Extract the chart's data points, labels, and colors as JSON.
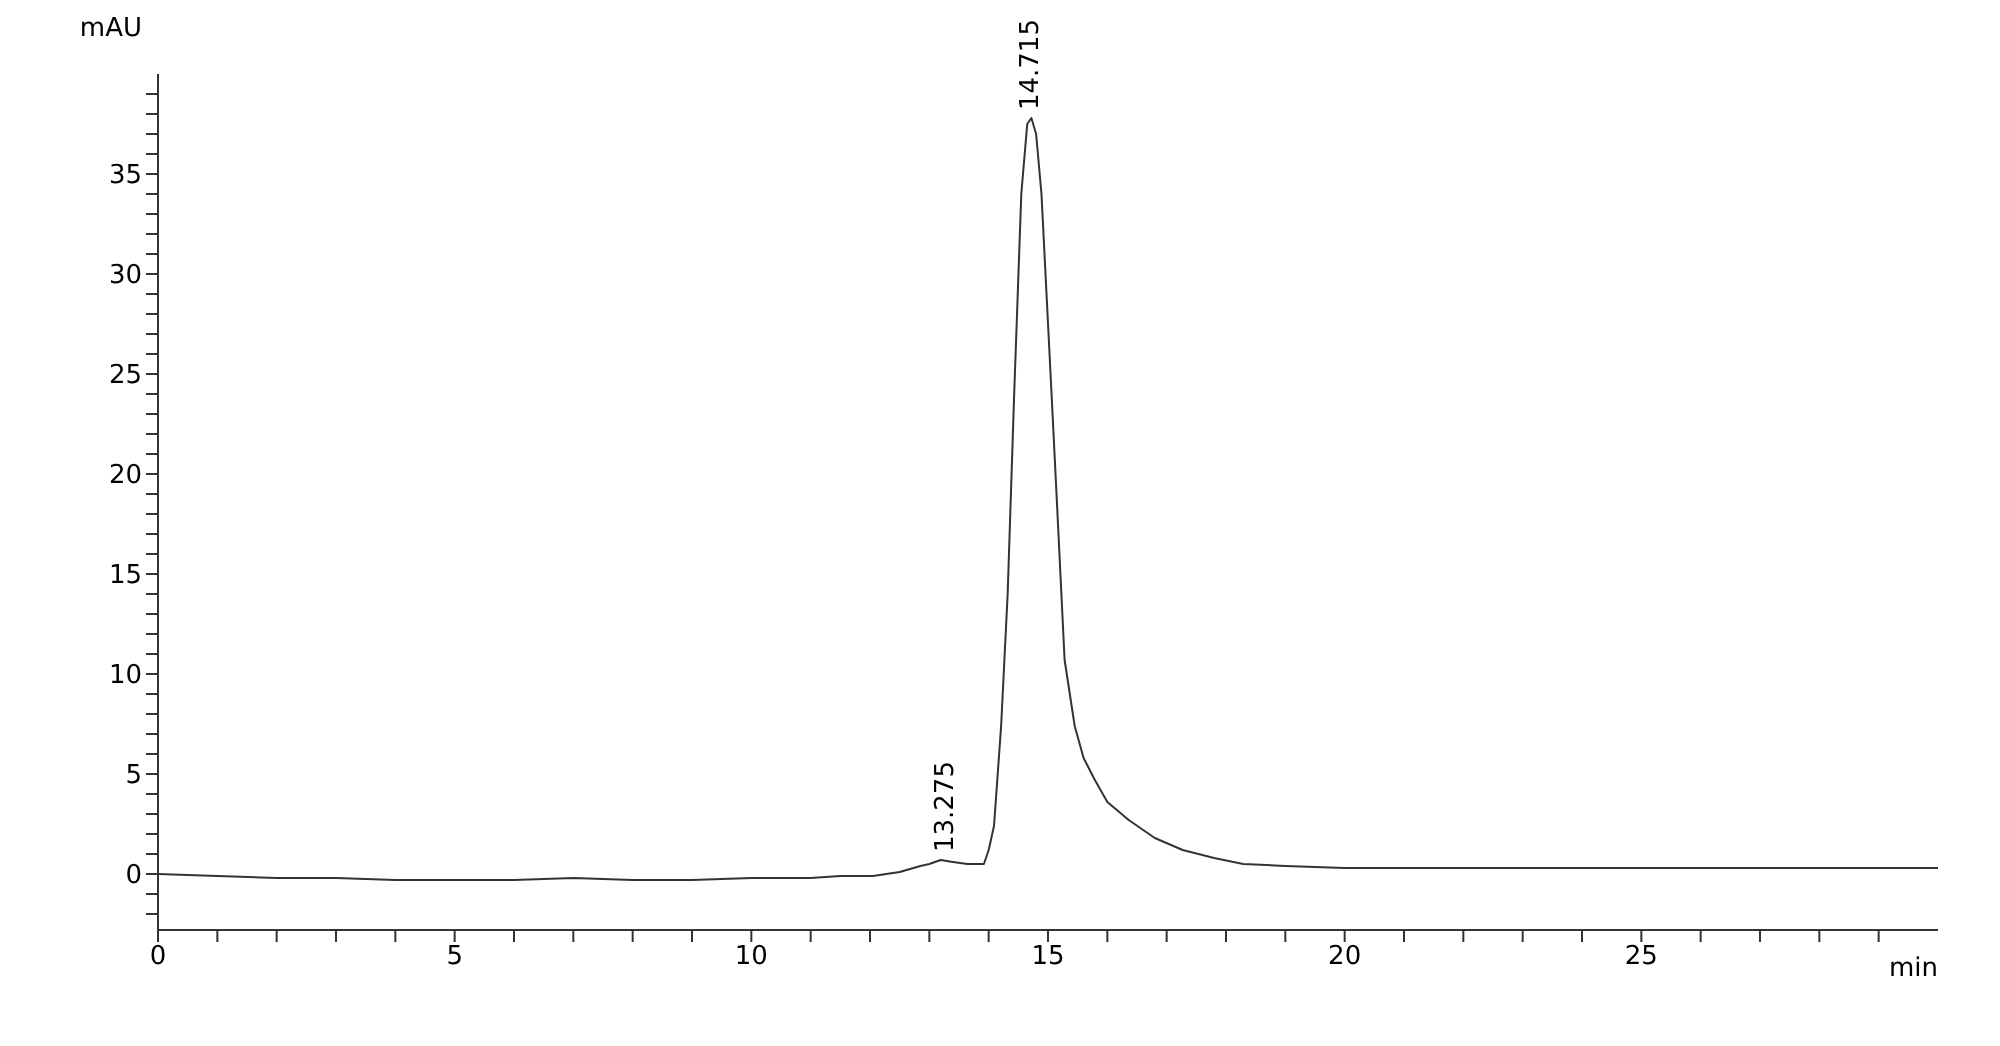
{
  "chart_data": {
    "type": "line",
    "xlabel": "min",
    "ylabel": "mAU",
    "x": [
      0,
      1,
      2,
      3,
      4,
      5,
      6,
      7,
      8,
      9,
      10,
      11,
      11.5,
      12.05,
      12.5,
      12.85,
      13.0,
      13.19,
      13.4,
      13.64,
      13.8,
      13.92,
      14.0,
      14.09,
      14.21,
      14.32,
      14.43,
      14.55,
      14.65,
      14.72,
      14.8,
      14.89,
      15.06,
      15.17,
      15.28,
      15.45,
      15.6,
      15.79,
      16.0,
      16.36,
      16.8,
      17.27,
      17.8,
      18.29,
      19,
      20,
      22,
      25,
      28,
      30
    ],
    "series": [
      {
        "color": "#333333",
        "values": [
          0,
          -0.1,
          -0.2,
          -0.2,
          -0.3,
          -0.3,
          -0.3,
          -0.2,
          -0.3,
          -0.3,
          -0.2,
          -0.2,
          -0.1,
          -0.1,
          0.1,
          0.4,
          0.5,
          0.7,
          0.6,
          0.5,
          0.5,
          0.5,
          1.2,
          2.4,
          7.4,
          14,
          24,
          34,
          37.5,
          37.8,
          37,
          34,
          24,
          17.4,
          10.7,
          7.4,
          5.8,
          4.7,
          3.6,
          2.7,
          1.8,
          1.2,
          0.8,
          0.5,
          0.4,
          0.3,
          0.3,
          0.3,
          0.3,
          0.3
        ]
      }
    ],
    "xlim": [
      0,
      30
    ],
    "ylim": [
      -2.8,
      40
    ],
    "xticks": [
      0,
      {
        "value": 1,
        "label": null
      },
      {
        "value": 2,
        "label": null
      },
      {
        "value": 3,
        "label": null
      },
      {
        "value": 4,
        "label": null
      },
      5,
      {
        "value": 6,
        "label": null
      },
      {
        "value": 7,
        "label": null
      },
      {
        "value": 8,
        "label": null
      },
      {
        "value": 9,
        "label": null
      },
      10,
      {
        "value": 11,
        "label": null
      },
      {
        "value": 12,
        "label": null
      },
      {
        "value": 13,
        "label": null
      },
      {
        "value": 14,
        "label": null
      },
      15,
      {
        "value": 16,
        "label": null
      },
      {
        "value": 17,
        "label": null
      },
      {
        "value": 18,
        "label": null
      },
      {
        "value": 19,
        "label": null
      },
      20,
      {
        "value": 21,
        "label": null
      },
      {
        "value": 22,
        "label": null
      },
      {
        "value": 23,
        "label": null
      },
      {
        "value": 24,
        "label": null
      },
      25,
      {
        "value": 26,
        "label": null
      },
      {
        "value": 27,
        "label": null
      },
      {
        "value": 28,
        "label": null
      },
      {
        "value": 29,
        "label": null
      }
    ],
    "yticks": [
      {
        "value": -2,
        "label": null
      },
      {
        "value": -1,
        "label": null
      },
      0,
      {
        "value": 1,
        "label": null
      },
      {
        "value": 2,
        "label": null
      },
      {
        "value": 3,
        "label": null
      },
      {
        "value": 4,
        "label": null
      },
      5,
      {
        "value": 6,
        "label": null
      },
      {
        "value": 7,
        "label": null
      },
      {
        "value": 8,
        "label": null
      },
      {
        "value": 9,
        "label": null
      },
      10,
      {
        "value": 11,
        "label": null
      },
      {
        "value": 12,
        "label": null
      },
      {
        "value": 13,
        "label": null
      },
      {
        "value": 14,
        "label": null
      },
      15,
      {
        "value": 16,
        "label": null
      },
      {
        "value": 17,
        "label": null
      },
      {
        "value": 18,
        "label": null
      },
      {
        "value": 19,
        "label": null
      },
      20,
      {
        "value": 21,
        "label": null
      },
      {
        "value": 22,
        "label": null
      },
      {
        "value": 23,
        "label": null
      },
      {
        "value": 24,
        "label": null
      },
      25,
      {
        "value": 26,
        "label": null
      },
      {
        "value": 27,
        "label": null
      },
      {
        "value": 28,
        "label": null
      },
      {
        "value": 29,
        "label": null
      },
      30,
      {
        "value": 31,
        "label": null
      },
      {
        "value": 32,
        "label": null
      },
      {
        "value": 33,
        "label": null
      },
      {
        "value": 34,
        "label": null
      },
      35,
      {
        "value": 36,
        "label": null
      },
      {
        "value": 37,
        "label": null
      },
      {
        "value": 38,
        "label": null
      },
      {
        "value": 39,
        "label": null
      }
    ],
    "annotations": [
      {
        "text": "13.275",
        "x": 13.275,
        "y": 0.7
      },
      {
        "text": "14.715",
        "x": 14.715,
        "y": 37.8
      }
    ],
    "grid": false,
    "legend": false,
    "marker": "none",
    "line_style": "solid"
  }
}
